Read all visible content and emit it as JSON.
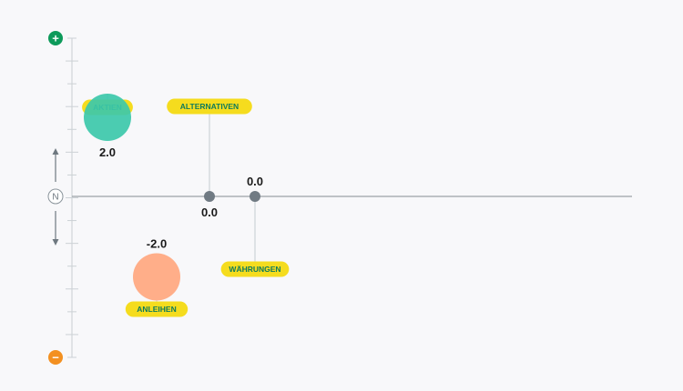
{
  "chart_data": {
    "type": "scatter",
    "title": "",
    "ylim": [
      -4,
      4
    ],
    "axis": {
      "top_marker": "+",
      "bottom_marker": "−",
      "center_label": "N"
    },
    "series": [
      {
        "name": "AKTIEN",
        "value": 2.0,
        "value_label": "2.0",
        "size": "large",
        "color": "#3cc8aa",
        "tag_position": "top"
      },
      {
        "name": "ANLEIHEN",
        "value": -2.0,
        "value_label": "-2.0",
        "size": "large",
        "color": "#ffa77f",
        "tag_position": "bottom"
      },
      {
        "name": "ALTERNATIVEN",
        "value": 0.0,
        "value_label": "0.0",
        "size": "small",
        "color": "#707a83",
        "tag_position": "top"
      },
      {
        "name": "WÄHRUNGEN",
        "value": 0.0,
        "value_label": "0.0",
        "size": "small",
        "color": "#707a83",
        "tag_position": "bottom"
      }
    ],
    "colors": {
      "tag_fill": "#f5dc1e",
      "tag_text": "#0e7a5c",
      "plus": "#0d9a5a",
      "minus": "#f39020",
      "axis": "#9aa1a8",
      "leader": "#c3cbd0"
    }
  }
}
